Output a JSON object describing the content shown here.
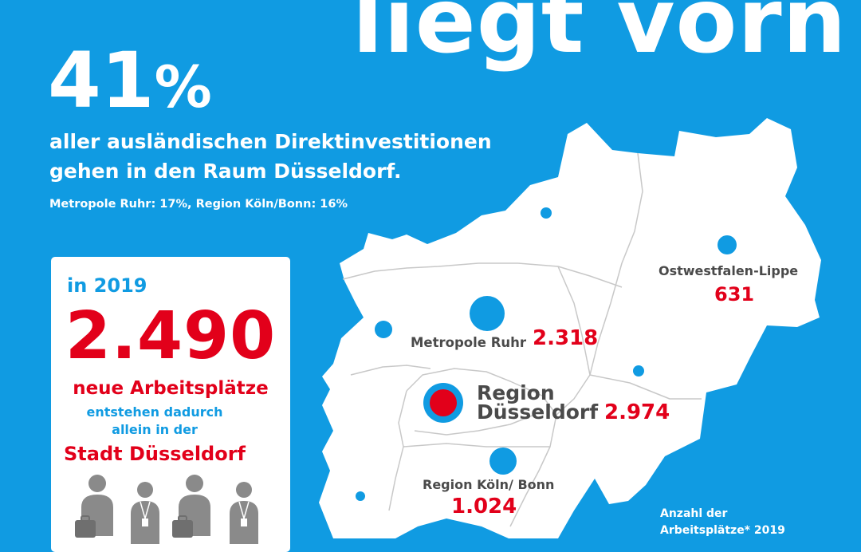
{
  "headline": "liegt vorn",
  "intro": {
    "percent": "41",
    "percent_sign": "%",
    "line1": "aller ausländischen Direktinvestitionen",
    "line2": "gehen in den Raum Düsseldorf.",
    "sub": "Metropole Ruhr: 17%, Region Köln/Bonn: 16%"
  },
  "card": {
    "year": "in 2019",
    "big_number": "2.490",
    "jobs": "neue Arbeitsplätze",
    "line1": "entstehen dadurch",
    "line2": "allein in der",
    "city": "Stadt Düsseldorf"
  },
  "regions": {
    "owl": {
      "label": "Ostwestfalen-Lippe",
      "value": "631"
    },
    "ruhr": {
      "label": "Metropole Ruhr",
      "value": "2.318"
    },
    "dus": {
      "label1": "Region",
      "label2": "Düsseldorf",
      "value": "2.974"
    },
    "koeln": {
      "label": "Region Köln/ Bonn",
      "value": "1.024"
    }
  },
  "footnote": {
    "line1": "Anzahl der",
    "line2": "Arbeitsplätze* 2019"
  },
  "colors": {
    "background": "#109be2",
    "accent_red": "#e2001a",
    "map_fill": "#ffffff",
    "label_gray": "#4a4a4a",
    "people_gray": "#8a8a8a"
  },
  "icons": [
    "person-with-briefcase-icon",
    "person-with-lanyard-icon"
  ]
}
